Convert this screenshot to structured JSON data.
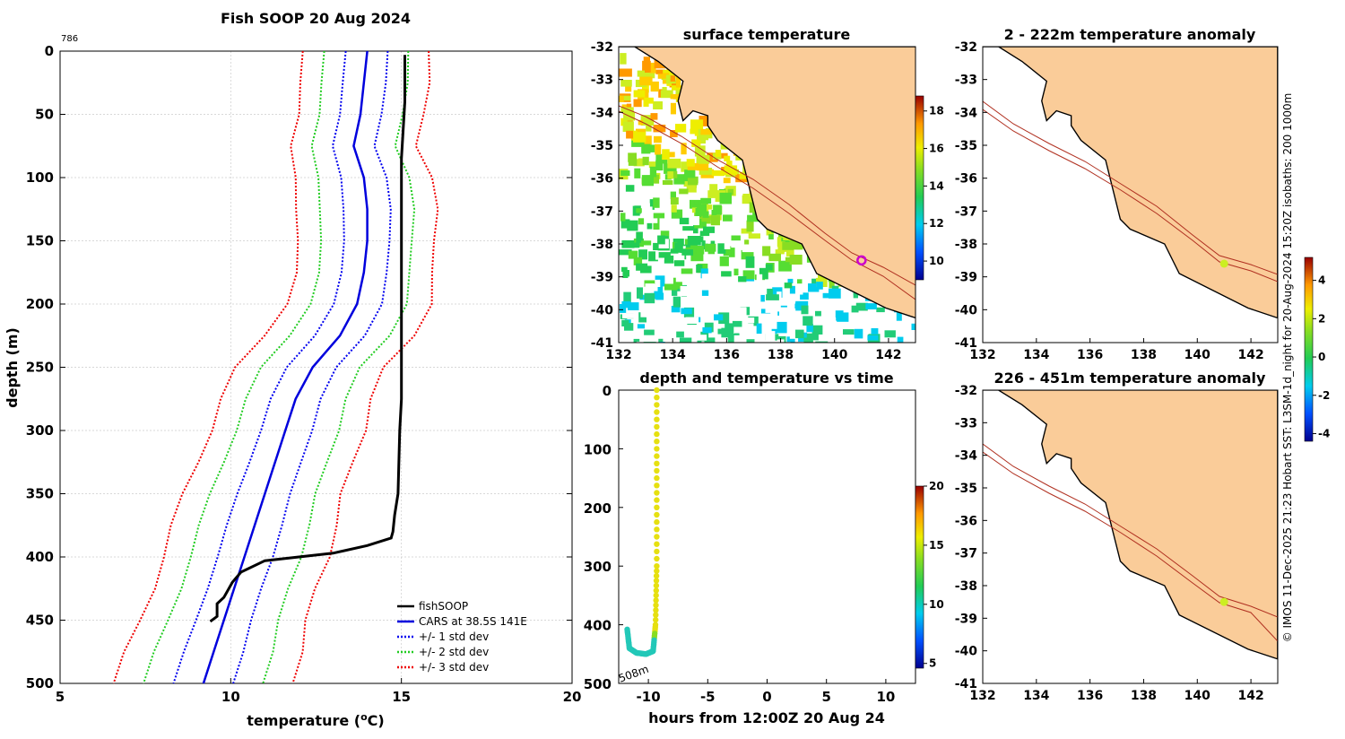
{
  "figure": {
    "title": "Fish SOOP 20 Aug 2024",
    "profile_id": "786",
    "side_note": "© IMOS 11-Dec-2025 21:23 Hobart SST: L3SM-1d_night for 20-Aug-2024 15:20Z isobaths: 200  1000m"
  },
  "colors": {
    "fishsoop": "#000000",
    "cars": "#0000dd",
    "std1": "#0000ee",
    "std2": "#22cc22",
    "std3": "#ee0000",
    "land": "#facc99",
    "isobath": "#b03020",
    "marker": "#cc00cc",
    "dot": "#ccee22"
  },
  "chart_data": [
    {
      "type": "line",
      "name": "profile",
      "title": "Fish SOOP 20 Aug 2024",
      "xlabel": "temperature (oC)",
      "ylabel": "depth (m)",
      "xlim": [
        5,
        20
      ],
      "ylim": [
        500,
        0
      ],
      "xticks": [
        "5",
        "10",
        "15",
        "20"
      ],
      "yticks": [
        "0",
        "50",
        "100",
        "150",
        "200",
        "250",
        "300",
        "350",
        "400",
        "450",
        "500"
      ],
      "grid": true,
      "legend_position": "bottom-right",
      "legend": [
        "fishSOOP",
        "CARS at 38.5S 141E",
        "+/- 1 std dev",
        "+/- 2 std dev",
        "+/- 3 std dev"
      ],
      "depth": [
        0,
        25,
        50,
        75,
        100,
        125,
        150,
        175,
        200,
        225,
        250,
        275,
        300,
        325,
        350,
        375,
        400,
        425,
        450,
        475,
        500
      ],
      "cars_mean": [
        14.0,
        13.9,
        13.8,
        13.6,
        13.9,
        14.0,
        14.0,
        13.9,
        13.7,
        13.2,
        12.4,
        11.9,
        11.6,
        11.3,
        11.0,
        10.7,
        10.4,
        10.1,
        9.8,
        9.5,
        9.2
      ],
      "series": [
        {
          "name": "fishSOOP",
          "depth": [
            3,
            40,
            85,
            120,
            180,
            250,
            275,
            300,
            350,
            367,
            380,
            385,
            391,
            397,
            403,
            412,
            420,
            432,
            437,
            447,
            451
          ],
          "temp": [
            15.1,
            15.1,
            15.0,
            15.0,
            15.0,
            15.0,
            15.0,
            14.95,
            14.9,
            14.8,
            14.75,
            14.7,
            14.0,
            13.0,
            11.0,
            10.3,
            10.05,
            9.8,
            9.6,
            9.6,
            9.4
          ]
        }
      ]
    },
    {
      "type": "heatmap",
      "name": "sst_map",
      "title": "surface temperature",
      "xlim": [
        132,
        143
      ],
      "ylim": [
        -41,
        -32
      ],
      "xticks": [
        "132",
        "134",
        "136",
        "138",
        "140",
        "142"
      ],
      "yticks": [
        "-32",
        "-33",
        "-34",
        "-35",
        "-36",
        "-37",
        "-38",
        "-39",
        "-40",
        "-41"
      ],
      "colorbar_ticks": [
        "10",
        "12",
        "14",
        "16",
        "18"
      ],
      "marker": {
        "lon": 141.0,
        "lat": -38.5
      }
    },
    {
      "type": "scatter",
      "name": "depth_time",
      "title": "depth and temperature vs time",
      "xlabel": "hours from 12:00Z 20 Aug 24",
      "xlim": [
        -12.5,
        12.5
      ],
      "ylim": [
        500,
        0
      ],
      "xticks": [
        "-10",
        "-5",
        "0",
        "5",
        "10"
      ],
      "yticks": [
        "0",
        "100",
        "200",
        "300",
        "400",
        "500"
      ],
      "colorbar_ticks": [
        "5",
        "10",
        "15",
        "20"
      ],
      "annotation": "508m",
      "track": {
        "hours": [
          -9.3,
          -9.3,
          -9.3,
          -9.4,
          -9.6,
          -10.2,
          -11.0,
          -11.6,
          -11.8
        ],
        "depth": [
          0,
          150,
          300,
          400,
          445,
          450,
          448,
          440,
          405
        ],
        "temp": [
          15.0,
          15.0,
          14.9,
          14.5,
          10.0,
          9.6,
          9.6,
          9.5,
          9.6
        ]
      }
    },
    {
      "type": "heatmap",
      "name": "anom_shallow",
      "title": "2 - 222m temperature anomaly",
      "xlim": [
        132,
        143
      ],
      "ylim": [
        -41,
        -32
      ],
      "xticks": [
        "132",
        "134",
        "136",
        "138",
        "140",
        "142"
      ],
      "yticks": [
        "-32",
        "-33",
        "-34",
        "-35",
        "-36",
        "-37",
        "-38",
        "-39",
        "-40",
        "-41"
      ],
      "point": {
        "lon": 141.0,
        "lat": -38.6,
        "anomaly": 1.0
      }
    },
    {
      "type": "heatmap",
      "name": "anom_deep",
      "title": "226 - 451m temperature anomaly",
      "xlim": [
        132,
        143
      ],
      "ylim": [
        -41,
        -32
      ],
      "xticks": [
        "132",
        "134",
        "136",
        "138",
        "140",
        "142"
      ],
      "yticks": [
        "-32",
        "-33",
        "-34",
        "-35",
        "-36",
        "-37",
        "-38",
        "-39",
        "-40",
        "-41"
      ],
      "point": {
        "lon": 141.0,
        "lat": -38.5,
        "anomaly": 1.0
      },
      "colorbar_ticks": [
        "4",
        "2",
        "0",
        "-2",
        "-4"
      ]
    }
  ]
}
